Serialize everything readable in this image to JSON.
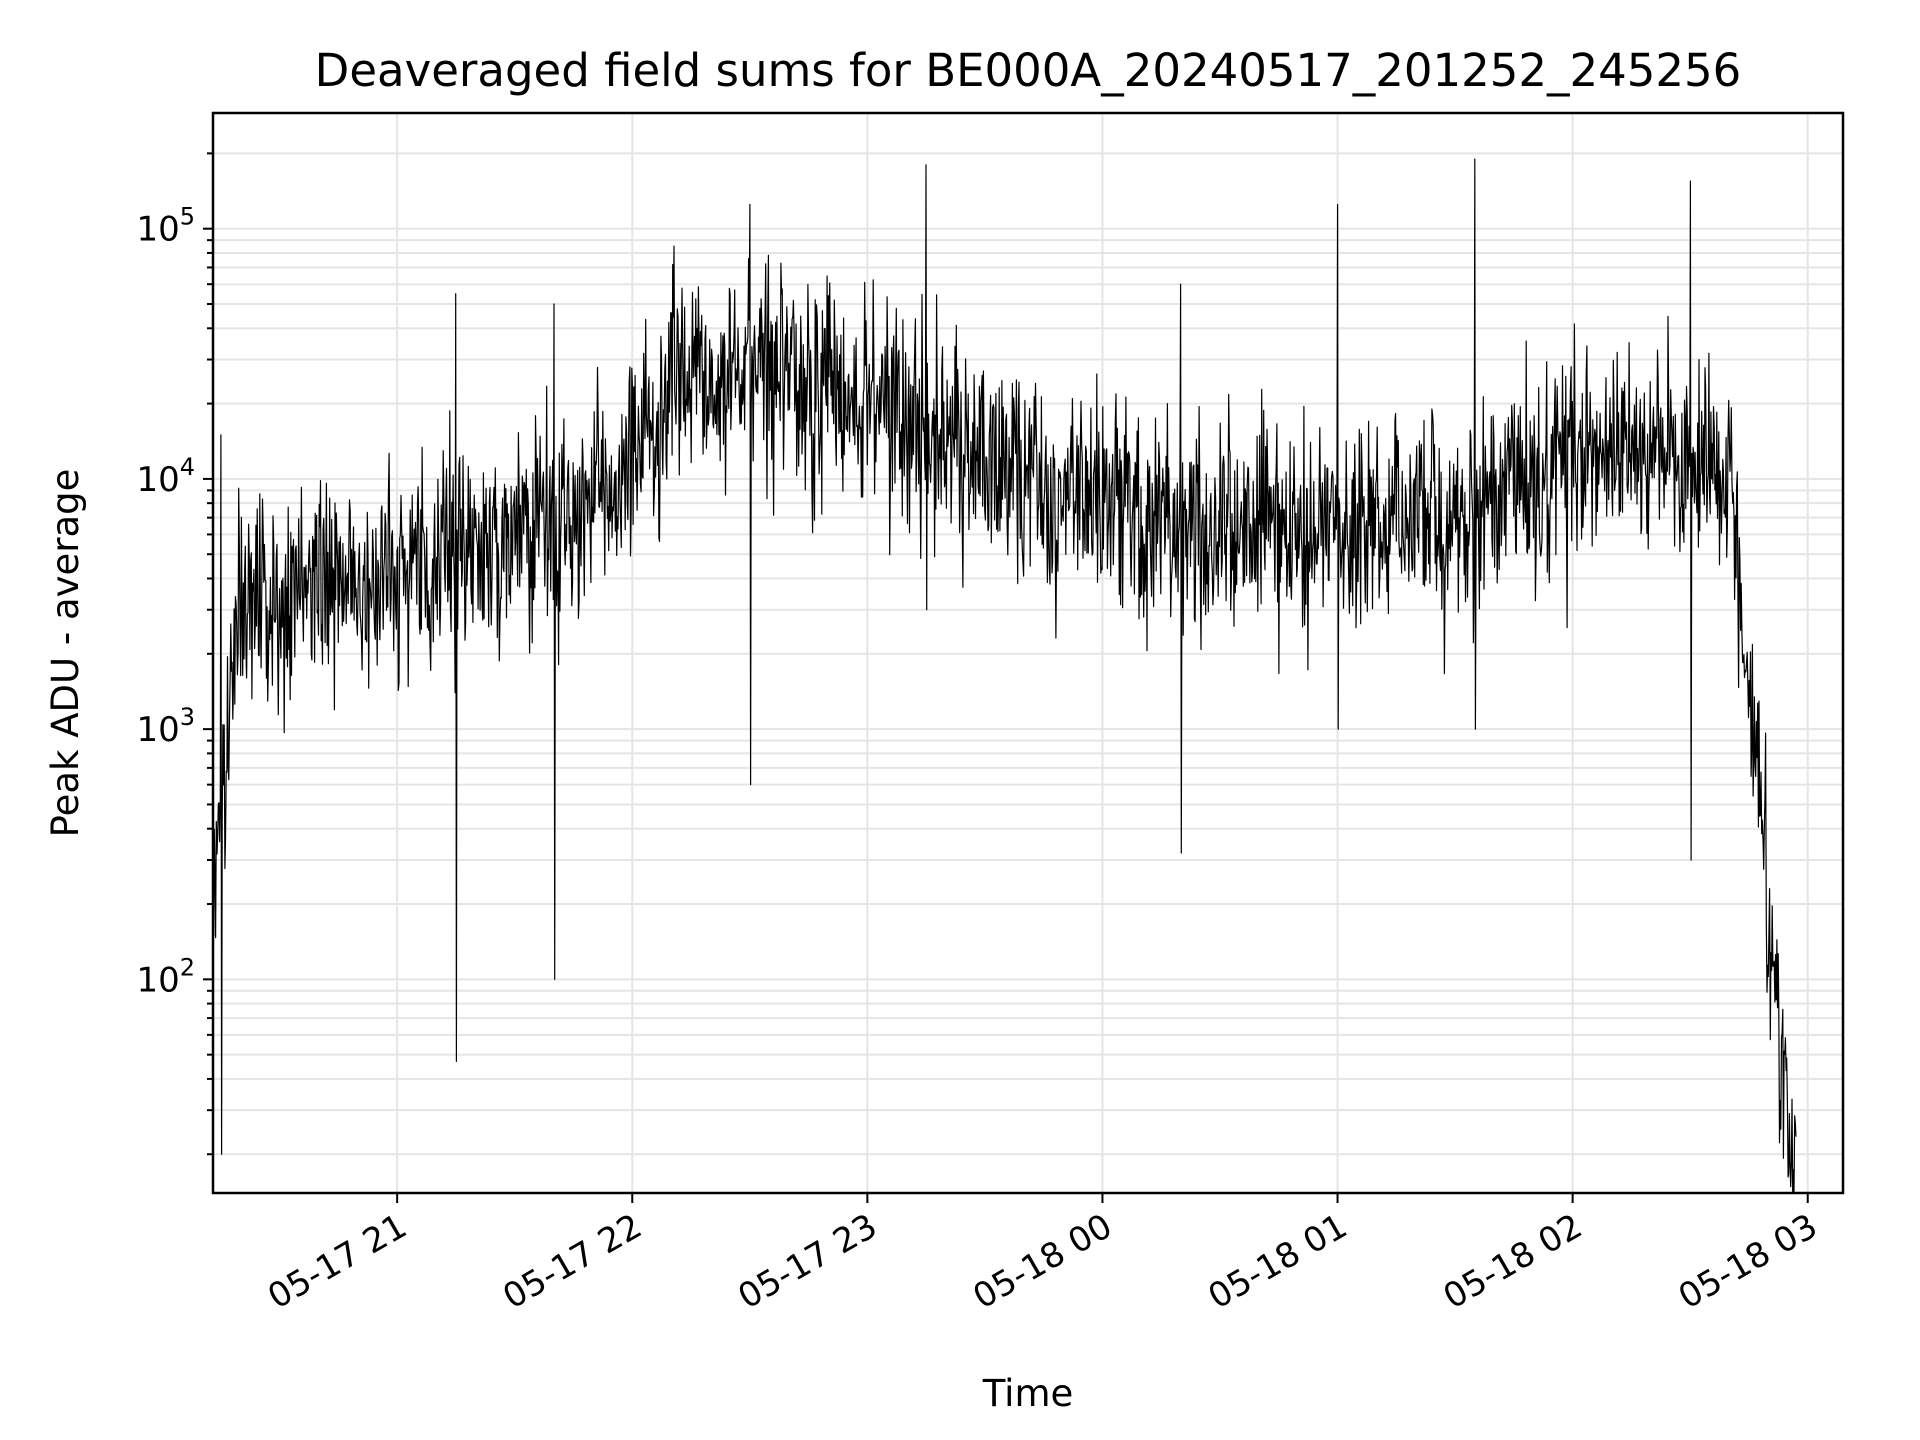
{
  "chart_data": {
    "type": "line",
    "title": "Deaveraged field sums for BE000A_20240517_201252_245256",
    "xlabel": "Time",
    "ylabel": "Peak ADU - average",
    "yscale": "log",
    "ylim": [
      14,
      290000
    ],
    "xlim": [
      "2024-05-17 20:13",
      "2024-05-18 03:09"
    ],
    "grid": true,
    "line_color": "#000000",
    "x_ticks": [
      {
        "value": "2024-05-17 21:00",
        "label": "05-17 21"
      },
      {
        "value": "2024-05-17 22:00",
        "label": "05-17 22"
      },
      {
        "value": "2024-05-17 23:00",
        "label": "05-17 23"
      },
      {
        "value": "2024-05-18 00:00",
        "label": "05-18 00"
      },
      {
        "value": "2024-05-18 01:00",
        "label": "05-18 01"
      },
      {
        "value": "2024-05-18 02:00",
        "label": "05-18 02"
      },
      {
        "value": "2024-05-18 03:00",
        "label": "05-18 03"
      }
    ],
    "y_ticks": [
      {
        "value": 100,
        "base": "10",
        "exp": "2"
      },
      {
        "value": 1000,
        "base": "10",
        "exp": "3"
      },
      {
        "value": 10000,
        "base": "10",
        "exp": "4"
      },
      {
        "value": 100000,
        "base": "10",
        "exp": "5"
      }
    ],
    "series": [
      {
        "x": [
          "2024-05-17 20:13",
          "2024-05-17 20:20",
          "2024-05-17 20:30",
          "2024-05-17 20:45",
          "2024-05-17 21:00",
          "2024-05-17 21:15",
          "2024-05-17 21:30",
          "2024-05-17 21:45",
          "2024-05-17 22:00",
          "2024-05-17 22:15",
          "2024-05-17 22:30",
          "2024-05-17 22:45",
          "2024-05-17 23:00",
          "2024-05-17 23:15",
          "2024-05-17 23:30",
          "2024-05-17 23:45",
          "2024-05-18 00:00",
          "2024-05-18 00:15",
          "2024-05-18 00:30",
          "2024-05-18 00:45",
          "2024-05-18 01:00",
          "2024-05-18 01:15",
          "2024-05-18 01:30",
          "2024-05-18 01:45",
          "2024-05-18 02:00",
          "2024-05-18 02:15",
          "2024-05-18 02:30",
          "2024-05-18 02:40",
          "2024-05-18 02:45",
          "2024-05-18 02:50",
          "2024-05-18 02:55"
        ],
        "y": [
          300,
          3000,
          3500,
          3800,
          4500,
          5000,
          5500,
          7000,
          12000,
          25000,
          28000,
          22000,
          20000,
          18000,
          12000,
          9000,
          8000,
          7000,
          6000,
          6000,
          6500,
          6500,
          7000,
          9000,
          12000,
          14000,
          13000,
          10000,
          1500,
          200,
          20
        ]
      }
    ],
    "extremes": {
      "x": [
        "2024-05-17 20:15",
        "2024-05-17 21:15",
        "2024-05-17 21:40",
        "2024-05-17 22:30",
        "2024-05-17 23:15",
        "2024-05-18 00:20",
        "2024-05-18 01:00",
        "2024-05-18 01:35",
        "2024-05-18 02:30"
      ],
      "y_high": [
        15000,
        55000,
        50000,
        125000,
        180000,
        60000,
        125000,
        190000,
        155000
      ],
      "y_low": [
        20,
        47,
        100,
        600,
        3000,
        320,
        1000,
        1000,
        300
      ]
    }
  }
}
